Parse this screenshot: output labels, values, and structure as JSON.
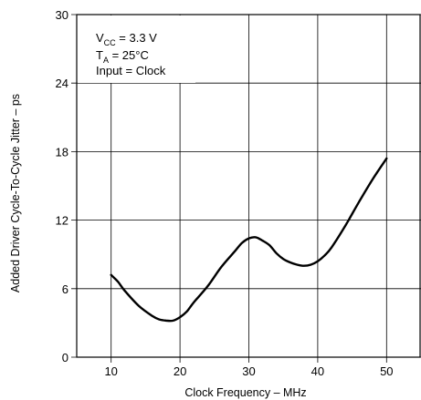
{
  "chart_data": {
    "type": "line",
    "title": "",
    "xlabel": "Clock Frequency –  MHz",
    "ylabel": "Added Driver Cycle-To-Cycle Jitter – ps",
    "xlim": [
      5,
      55
    ],
    "ylim": [
      0,
      30
    ],
    "xticks": [
      10,
      20,
      30,
      40,
      50
    ],
    "yticks": [
      0,
      6,
      12,
      18,
      24,
      30
    ],
    "grid": true,
    "annotation": {
      "line1_main": "V",
      "line1_sub": "CC",
      "line1_rest": " = 3.3 V",
      "line2_main": "T",
      "line2_sub": "A",
      "line2_rest": " = 25°C",
      "line3": "Input = Clock"
    },
    "series": [
      {
        "x": [
          10,
          11,
          12,
          14,
          16,
          17,
          18,
          19,
          20,
          21,
          22,
          24,
          26,
          28,
          29,
          30,
          31,
          32,
          33,
          34,
          35,
          36,
          37,
          38,
          39,
          40,
          41,
          42,
          44,
          46,
          48,
          50
        ],
        "y": [
          7.2,
          6.6,
          5.8,
          4.5,
          3.6,
          3.3,
          3.2,
          3.2,
          3.5,
          4.0,
          4.8,
          6.2,
          7.9,
          9.3,
          10.0,
          10.4,
          10.5,
          10.2,
          9.8,
          9.1,
          8.6,
          8.3,
          8.1,
          8.0,
          8.1,
          8.4,
          8.9,
          9.6,
          11.5,
          13.6,
          15.6,
          17.4
        ]
      }
    ]
  }
}
